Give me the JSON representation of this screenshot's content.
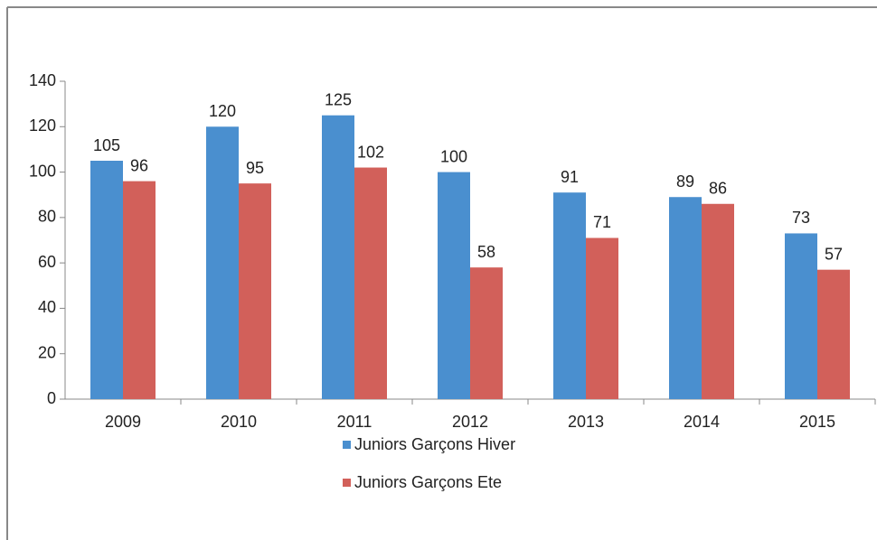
{
  "chart_data": {
    "type": "bar",
    "categories": [
      "2009",
      "2010",
      "2011",
      "2012",
      "2013",
      "2014",
      "2015"
    ],
    "series": [
      {
        "name": "Juniors Garçons Hiver",
        "color": "#4a8fcf",
        "values": [
          105,
          120,
          125,
          100,
          91,
          89,
          73
        ]
      },
      {
        "name": "Juniors Garçons Ete",
        "color": "#d2605a",
        "values": [
          96,
          95,
          102,
          58,
          71,
          86,
          57
        ]
      }
    ],
    "ylim": [
      0,
      140
    ],
    "yticks": [
      0,
      20,
      40,
      60,
      80,
      100,
      120,
      140
    ],
    "grid": false
  }
}
